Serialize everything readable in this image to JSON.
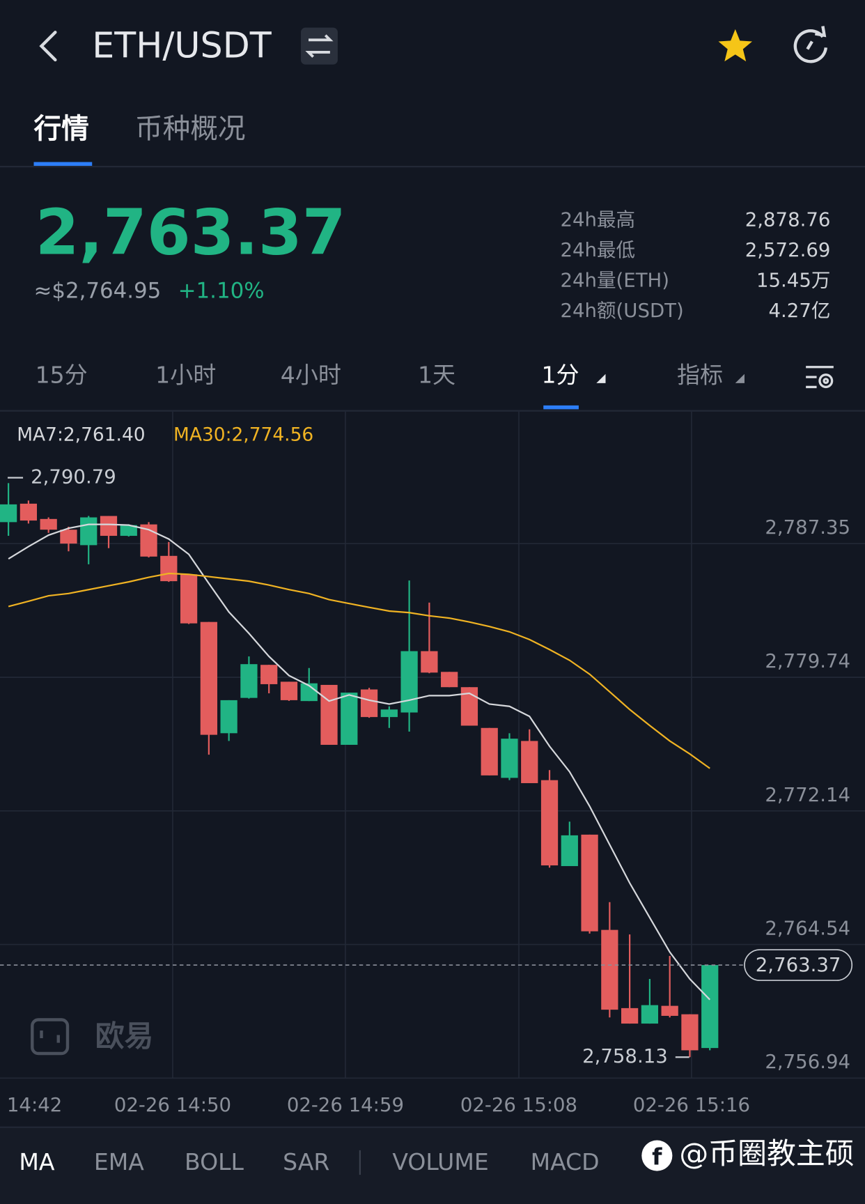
{
  "header": {
    "title": "ETH/USDT"
  },
  "tabs": [
    "行情",
    "币种概况"
  ],
  "price": {
    "last": "2,763.37",
    "usd": "≈$2,764.95",
    "change": "+1.10%"
  },
  "stats": [
    {
      "label": "24h最高",
      "value": "2,878.76"
    },
    {
      "label": "24h最低",
      "value": "2,572.69"
    },
    {
      "label": "24h量(ETH)",
      "value": "15.45万"
    },
    {
      "label": "24h额(USDT)",
      "value": "4.27亿"
    }
  ],
  "intervals": [
    "15分",
    "1小时",
    "4小时",
    "1天",
    "1分",
    "指标"
  ],
  "logo": "欧易",
  "indicator_bar": [
    "MA",
    "EMA",
    "BOLL",
    "SAR",
    "VOLUME",
    "MACD"
  ],
  "watermark": "@币圈教主硕",
  "chart_data": {
    "type": "candlestick",
    "ma_labels": [
      "MA7:2,761.40",
      "MA30:2,774.56"
    ],
    "x_labels": [
      "14:42",
      "02-26 14:50",
      "02-26 14:59",
      "02-26 15:08",
      "02-26 15:16"
    ],
    "up_color": "#21b484",
    "down_color": "#e35d5d",
    "open": [
      2788.57,
      2789.62,
      2788.75,
      2788.14,
      2787.26,
      2788.92,
      2787.79,
      2788.44,
      2786.65,
      2785.6,
      2782.89,
      2776.56,
      2778.57,
      2780.45,
      2779.49,
      2778.39,
      2779.31,
      2775.9,
      2779.05,
      2777.48,
      2777.74,
      2781.23,
      2780.05,
      2779.18,
      2776.86,
      2774.02,
      2776.12,
      2773.89,
      2769.0,
      2770.79,
      2765.37,
      2760.92,
      2760.04,
      2761.05,
      2760.57,
      2758.65
    ],
    "high": [
      2790.79,
      2789.8,
      2788.84,
      2788.31,
      2788.92,
      2788.92,
      2788.45,
      2788.57,
      2787.44,
      2785.6,
      2782.89,
      2778.44,
      2780.93,
      2780.45,
      2779.49,
      2780.27,
      2779.31,
      2778.87,
      2779.14,
      2778.09,
      2785.25,
      2783.99,
      2780.05,
      2779.18,
      2776.86,
      2776.56,
      2776.78,
      2774.46,
      2771.53,
      2770.79,
      2766.95,
      2765.11,
      2762.58,
      2763.89,
      2760.57,
      2763.37
    ],
    "low": [
      2787.79,
      2788.49,
      2787.96,
      2786.91,
      2786.17,
      2787.09,
      2787.75,
      2786.56,
      2785.17,
      2782.77,
      2775.34,
      2776.12,
      2778.53,
      2778.83,
      2778.4,
      2778.39,
      2775.9,
      2775.9,
      2777.44,
      2776.86,
      2776.65,
      2779.97,
      2779.18,
      2776.99,
      2774.16,
      2773.89,
      2773.72,
      2768.91,
      2769.0,
      2765.16,
      2760.39,
      2760.04,
      2760.04,
      2760.39,
      2758.13,
      2758.52
    ],
    "close": [
      2789.58,
      2788.66,
      2788.14,
      2787.35,
      2788.84,
      2787.79,
      2788.4,
      2786.61,
      2785.21,
      2782.81,
      2776.47,
      2778.44,
      2780.49,
      2779.35,
      2778.44,
      2779.4,
      2775.9,
      2778.87,
      2777.48,
      2777.91,
      2781.23,
      2780.01,
      2779.18,
      2776.99,
      2774.16,
      2776.25,
      2773.72,
      2769.04,
      2770.75,
      2765.29,
      2760.83,
      2760.04,
      2761.09,
      2760.48,
      2758.52,
      2763.37
    ],
    "series": [
      {
        "name": "MA7",
        "color": "#d6d8dc",
        "values": [
          2786.48,
          2787.18,
          2787.83,
          2788.22,
          2788.44,
          2788.44,
          2788.4,
          2788.14,
          2787.61,
          2786.74,
          2785.08,
          2783.46,
          2782.24,
          2780.93,
          2779.84,
          2779.27,
          2778.39,
          2778.74,
          2778.44,
          2778.22,
          2778.44,
          2778.7,
          2778.7,
          2778.83,
          2778.22,
          2778.09,
          2777.52,
          2775.82,
          2774.37,
          2772.41,
          2770.22,
          2768.04,
          2766.07,
          2764.11,
          2762.58,
          2761.4
        ]
      },
      {
        "name": "MA30",
        "color": "#f0b323",
        "values": [
          2783.77,
          2784.07,
          2784.38,
          2784.51,
          2784.73,
          2784.95,
          2785.17,
          2785.43,
          2785.65,
          2785.6,
          2785.47,
          2785.34,
          2785.21,
          2784.99,
          2784.73,
          2784.51,
          2784.16,
          2783.94,
          2783.72,
          2783.51,
          2783.42,
          2783.24,
          2783.11,
          2782.89,
          2782.63,
          2782.33,
          2781.89,
          2781.32,
          2780.71,
          2779.92,
          2778.92,
          2777.91,
          2777.0,
          2776.12,
          2775.38,
          2774.56
        ]
      }
    ],
    "ylim": [
      2756.94,
      2794.86
    ],
    "yticks": [
      {
        "value": 2787.35,
        "label": "2,787.35"
      },
      {
        "value": 2779.74,
        "label": "2,779.74"
      },
      {
        "value": 2772.14,
        "label": "2,772.14"
      },
      {
        "value": 2764.54,
        "label": "2,764.54"
      },
      {
        "value": 2756.94,
        "label": "2,756.94"
      }
    ],
    "grid": true,
    "last_price": {
      "value": 2763.37,
      "label": "2,763.37"
    },
    "high_mark": {
      "value": 2790.79,
      "label": "2,790.79"
    },
    "low_mark": {
      "value": 2758.13,
      "label": "2,758.13"
    }
  }
}
